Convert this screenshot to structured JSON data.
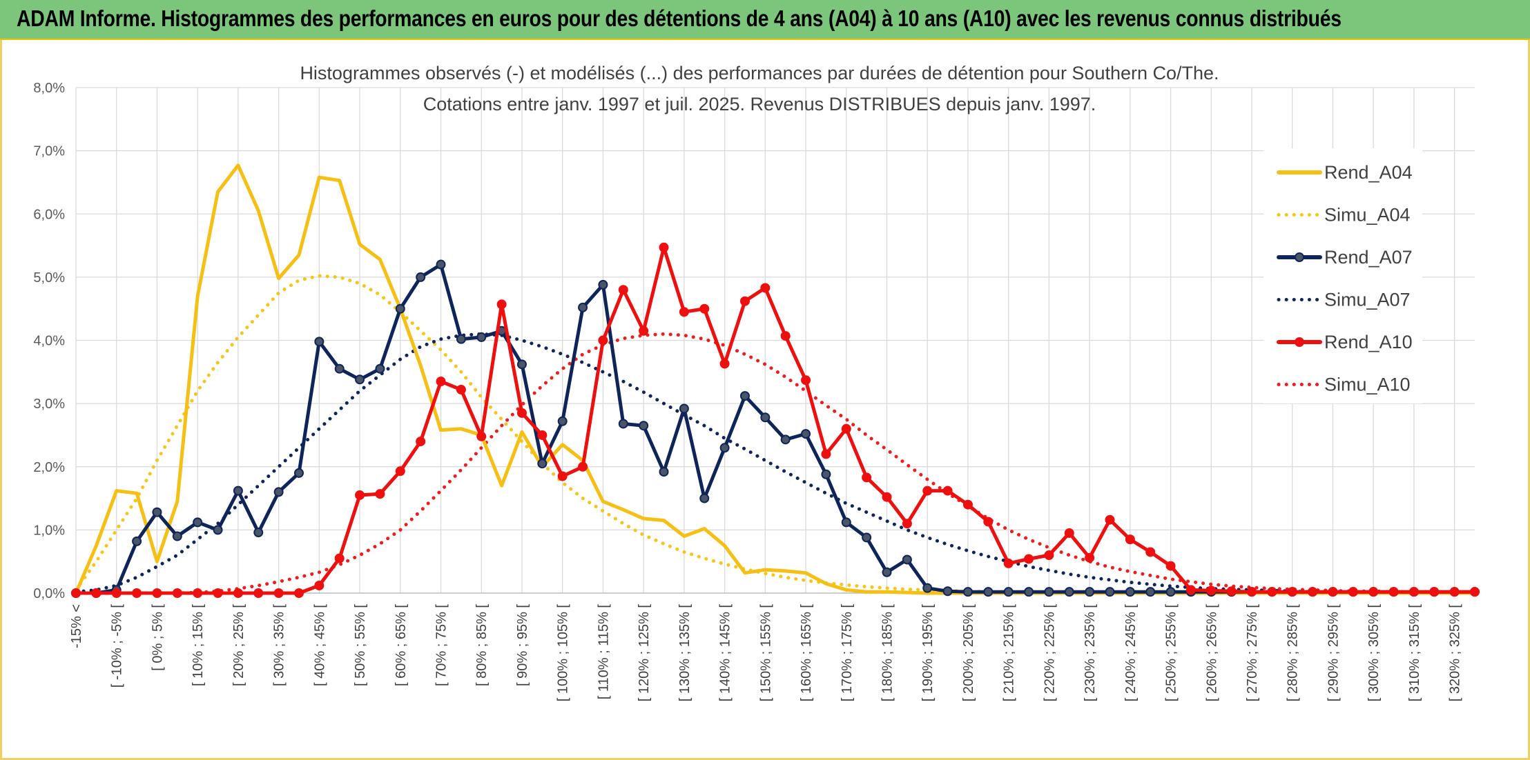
{
  "header": {
    "title": "ADAM Informe. Histogrammes des performances en euros pour des détentions de 4 ans (A04) à 10 ans (A10) avec les revenus connus distribués"
  },
  "chart_data": {
    "type": "line",
    "title": "Histogrammes observés (-) et modélisés (...) des performances par durées de détention pour Southern Co/The.",
    "subtitle": "Cotations entre janv. 1997 et juil. 2025. Revenus DISTRIBUES depuis janv. 1997.",
    "xlabel": "",
    "ylabel": "",
    "ylim": [
      0,
      8
    ],
    "y_ticks": [
      "0,0%",
      "1,0%",
      "2,0%",
      "3,0%",
      "4,0%",
      "5,0%",
      "6,0%",
      "7,0%",
      "8,0%"
    ],
    "grid": true,
    "legend_position": "right",
    "categories": [
      "-15% <",
      "[ -15% ; -10% [",
      "[ -10% ; -5% [",
      "[ -5% ; 0% [",
      "[ 0% ; 5% [",
      "[ 5% ; 10% [",
      "[ 10% ; 15% [",
      "[ 15% ; 20% [",
      "[ 20% ; 25% [",
      "[ 25% ; 30% [",
      "[ 30% ; 35% [",
      "[ 35% ; 40% [",
      "[ 40% ; 45% [",
      "[ 45% ; 50% [",
      "[ 50% ; 55% [",
      "[ 55% ; 60% [",
      "[ 60% ; 65% [",
      "[ 65% ; 70% [",
      "[ 70% ; 75% [",
      "[ 75% ; 80% [",
      "[ 80% ; 85% [",
      "[ 85% ; 90% [",
      "[ 90% ; 95% [",
      "[ 95% ; 100% [",
      "[ 100% ; 105% [",
      "[ 105% ; 110% [",
      "[ 110% ; 115% [",
      "[ 115% ; 120% [",
      "[ 120% ; 125% [",
      "[ 125% ; 130% [",
      "[ 130% ; 135% [",
      "[ 135% ; 140% [",
      "[ 140% ; 145% [",
      "[ 145% ; 150% [",
      "[ 150% ; 155% [",
      "[ 155% ; 160% [",
      "[ 160% ; 165% [",
      "[ 165% ; 170% [",
      "[ 170% ; 175% [",
      "[ 175% ; 180% [",
      "[ 180% ; 185% [",
      "[ 185% ; 190% [",
      "[ 190% ; 195% [",
      "[ 195% ; 200% [",
      "[ 200% ; 205% [",
      "[ 205% ; 210% [",
      "[ 210% ; 215% [",
      "[ 215% ; 220% [",
      "[ 220% ; 225% [",
      "[ 225% ; 230% [",
      "[ 230% ; 235% [",
      "[ 235% ; 240% [",
      "[ 240% ; 245% [",
      "[ 245% ; 250% [",
      "[ 250% ; 255% [",
      "[ 255% ; 260% [",
      "[ 260% ; 265% [",
      "[ 265% ; 270% [",
      "[ 270% ; 275% [",
      "[ 275% ; 280% [",
      "[ 280% ; 285% [",
      "[ 285% ; 290% [",
      "[ 290% ; 295% [",
      "[ 295% ; 300% [",
      "[ 300% ; 305% [",
      "[ 305% ; 310% [",
      "[ 310% ; 315% [",
      "[ 315% ; 320% [",
      "[ 320% ; 325% [",
      "[ 325% ; 330% ["
    ],
    "visible_category_labels": [
      "-15% <",
      "[ -10% ; -5% [",
      "[ 0% ; 5% [",
      "[ 10% ; 15% [",
      "[ 20% ; 25% [",
      "[ 30% ; 35% [",
      "[ 40% ; 45% [",
      "[ 50% ; 55% [",
      "[ 60% ; 65% [",
      "[ 70% ; 75% [",
      "[ 80% ; 85% [",
      "[ 90% ; 95% [",
      "[ 100% ; 105% [",
      "[ 110% ; 115% [",
      "[ 120% ; 125% [",
      "[ 130% ; 135% [",
      "[ 140% ; 145% [",
      "[ 150% ; 155% [",
      "[ 160% ; 165% [",
      "[ 170% ; 175% [",
      "[ 180% ; 185% [",
      "[ 190% ; 195% [",
      "[ 200% ; 205% [",
      "[ 210% ; 215% [",
      "[ 220% ; 225% [",
      "[ 230% ; 235% [",
      "[ 240% ; 245% [",
      "[ 250% ; 255% [",
      "[ 260% ; 265% [",
      "[ 270% ; 275% [",
      "[ 280% ; 285% [",
      "[ 290% ; 295% [",
      "[ 300% ; 305% [",
      "[ 310% ; 315% [",
      "[ 320% ; 325% ["
    ],
    "series": [
      {
        "name": "Rend_A04",
        "style": "solid",
        "markers": false,
        "color": "#f5bf14",
        "values": [
          0,
          0.75,
          1.62,
          1.58,
          0.5,
          1.45,
          4.7,
          6.35,
          6.77,
          6.05,
          4.98,
          5.35,
          6.58,
          6.53,
          5.52,
          5.28,
          4.5,
          3.6,
          2.58,
          2.6,
          2.5,
          1.7,
          2.55,
          2.0,
          2.35,
          2.1,
          1.45,
          1.32,
          1.18,
          1.15,
          0.9,
          1.02,
          0.75,
          0.32,
          0.37,
          0.35,
          0.32,
          0.15,
          0.05,
          0.02,
          0.02,
          0.01,
          0,
          0,
          0,
          0,
          0,
          0,
          0,
          0,
          0,
          0,
          0,
          0,
          0,
          0,
          0,
          0,
          0,
          0,
          0,
          0,
          0,
          0,
          0,
          0,
          0,
          0,
          0,
          0
        ]
      },
      {
        "name": "Simu_A04",
        "style": "dotted",
        "markers": false,
        "color": "#f5c518",
        "values": [
          0.05,
          0.5,
          1.0,
          1.5,
          2.1,
          2.65,
          3.2,
          3.65,
          4.05,
          4.4,
          4.75,
          4.95,
          5.02,
          5.0,
          4.9,
          4.72,
          4.45,
          4.15,
          3.85,
          3.5,
          3.1,
          2.75,
          2.4,
          2.05,
          1.75,
          1.5,
          1.3,
          1.1,
          0.92,
          0.78,
          0.65,
          0.55,
          0.46,
          0.38,
          0.31,
          0.25,
          0.2,
          0.16,
          0.13,
          0.1,
          0.08,
          0.06,
          0.05,
          0.04,
          0.03,
          0.02,
          0.02,
          0.01,
          0.01,
          0.01,
          0,
          0,
          0,
          0,
          0,
          0,
          0,
          0,
          0,
          0,
          0,
          0,
          0,
          0,
          0,
          0,
          0,
          0,
          0,
          0
        ]
      },
      {
        "name": "Rend_A07",
        "style": "solid",
        "markers": true,
        "color": "#0f2459",
        "values": [
          0,
          0,
          0.05,
          0.82,
          1.28,
          0.9,
          1.12,
          1.0,
          1.62,
          0.96,
          1.6,
          1.9,
          3.98,
          3.55,
          3.38,
          3.55,
          4.5,
          5.0,
          5.2,
          4.02,
          4.05,
          4.15,
          3.62,
          2.05,
          2.72,
          4.52,
          4.88,
          2.68,
          2.65,
          1.92,
          2.92,
          1.5,
          2.3,
          3.12,
          2.78,
          2.43,
          2.52,
          1.88,
          1.12,
          0.88,
          0.33,
          0.53,
          0.08,
          0.03,
          0.02,
          0.02,
          0.02,
          0.02,
          0.02,
          0.02,
          0.02,
          0.02,
          0.02,
          0.02,
          0.02,
          0.02,
          0.02,
          0.02,
          0.02,
          0.02,
          0.02,
          0.02,
          0.02,
          0.02,
          0.02,
          0.02,
          0.02,
          0.02,
          0.02,
          0.02
        ]
      },
      {
        "name": "Simu_A07",
        "style": "dotted",
        "markers": false,
        "color": "#0f2459",
        "values": [
          0.02,
          0.05,
          0.12,
          0.25,
          0.42,
          0.6,
          0.85,
          1.1,
          1.4,
          1.7,
          2.0,
          2.3,
          2.6,
          2.9,
          3.2,
          3.45,
          3.7,
          3.9,
          4.02,
          4.08,
          4.1,
          4.08,
          4.0,
          3.9,
          3.78,
          3.65,
          3.5,
          3.35,
          3.18,
          3.0,
          2.82,
          2.65,
          2.45,
          2.28,
          2.1,
          1.92,
          1.75,
          1.58,
          1.42,
          1.28,
          1.14,
          1.0,
          0.88,
          0.77,
          0.67,
          0.58,
          0.5,
          0.42,
          0.36,
          0.3,
          0.25,
          0.21,
          0.17,
          0.14,
          0.11,
          0.09,
          0.07,
          0.06,
          0.05,
          0.04,
          0.03,
          0.02,
          0.02,
          0.02,
          0.01,
          0.01,
          0.01,
          0.01,
          0,
          0
        ]
      },
      {
        "name": "Rend_A10",
        "style": "solid",
        "markers": true,
        "color": "#ee0f0f",
        "values": [
          0,
          0,
          0,
          0,
          0,
          0,
          0,
          0,
          0,
          0,
          0,
          0,
          0.12,
          0.55,
          1.55,
          1.57,
          1.93,
          2.4,
          3.35,
          3.22,
          2.48,
          4.57,
          2.85,
          2.5,
          1.85,
          2.0,
          4.0,
          4.8,
          4.15,
          5.47,
          4.45,
          4.5,
          3.63,
          4.62,
          4.83,
          4.07,
          3.37,
          2.2,
          2.6,
          1.83,
          1.52,
          1.1,
          1.62,
          1.62,
          1.4,
          1.13,
          0.47,
          0.54,
          0.6,
          0.95,
          0.56,
          1.16,
          0.85,
          0.65,
          0.43,
          0.05,
          0.04,
          0.03,
          0.02,
          0.02,
          0.02,
          0.02,
          0.02,
          0.02,
          0.02,
          0.02,
          0.02,
          0.02,
          0.02,
          0.02
        ]
      },
      {
        "name": "Simu_A10",
        "style": "dotted",
        "markers": false,
        "color": "#ee1c1c",
        "values": [
          0,
          0,
          0,
          0,
          0,
          0,
          0.01,
          0.03,
          0.07,
          0.12,
          0.18,
          0.25,
          0.33,
          0.45,
          0.6,
          0.78,
          1.0,
          1.3,
          1.62,
          1.95,
          2.3,
          2.65,
          2.98,
          3.28,
          3.55,
          3.78,
          3.93,
          4.03,
          4.08,
          4.1,
          4.08,
          4.02,
          3.92,
          3.78,
          3.62,
          3.42,
          3.2,
          2.97,
          2.75,
          2.5,
          2.27,
          2.03,
          1.8,
          1.58,
          1.38,
          1.18,
          1.0,
          0.85,
          0.72,
          0.6,
          0.5,
          0.41,
          0.34,
          0.28,
          0.22,
          0.18,
          0.14,
          0.11,
          0.09,
          0.07,
          0.06,
          0.05,
          0.04,
          0.03,
          0.03,
          0.02,
          0.02,
          0.02,
          0.01,
          0.01
        ]
      }
    ]
  }
}
